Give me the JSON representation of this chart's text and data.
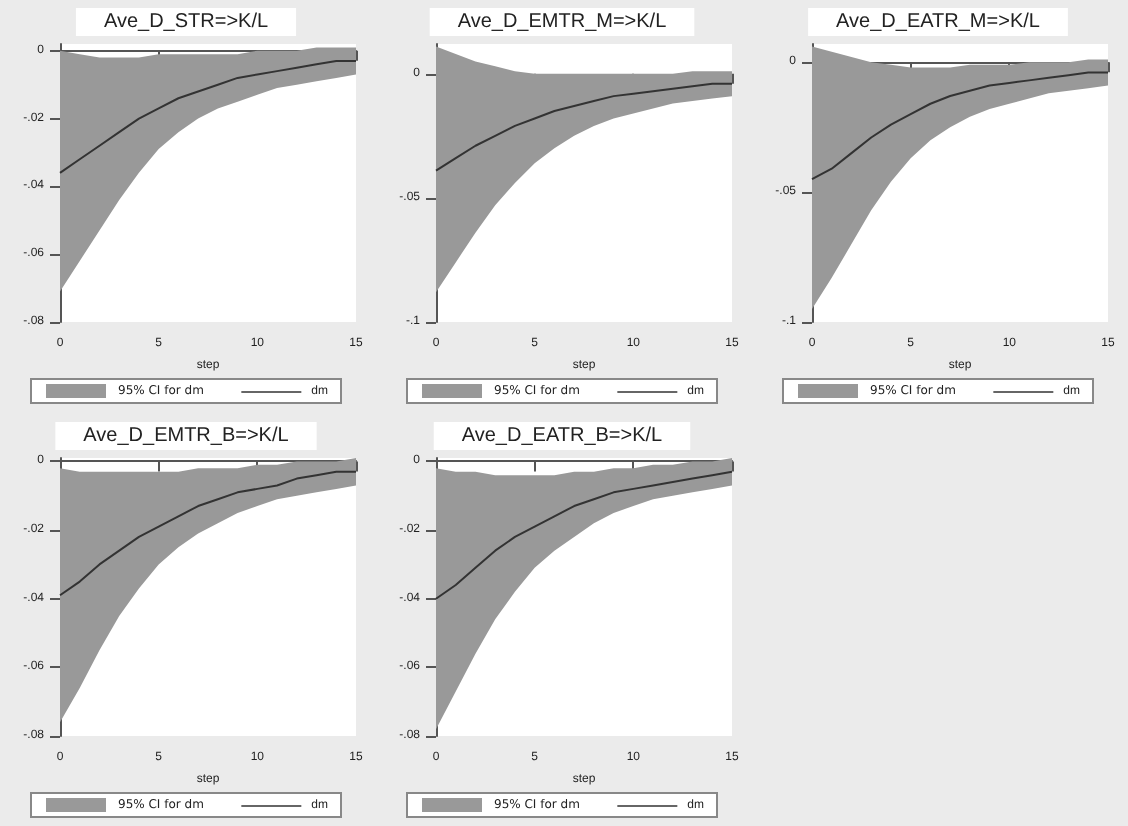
{
  "chart_data": [
    {
      "type": "line",
      "title": "Ave_D_STR=>K/L",
      "xlabel": "step",
      "annotations": [
        "95% CI for dm"
      ],
      "x": [
        0,
        1,
        2,
        3,
        4,
        5,
        6,
        7,
        8,
        9,
        10,
        11,
        12,
        13,
        14,
        15
      ],
      "xlim": [
        0,
        15
      ],
      "xticks": [
        0,
        5,
        10,
        15
      ],
      "ylim": [
        -0.08,
        0.002
      ],
      "yticks": [
        {
          "value": 0,
          "label": "0"
        },
        {
          "value": -0.02,
          "label": "-.02"
        },
        {
          "value": -0.04,
          "label": "-.04"
        },
        {
          "value": -0.06,
          "label": "-.06"
        },
        {
          "value": -0.08,
          "label": "-.08"
        }
      ],
      "legend": "bottom",
      "series": [
        {
          "name": "dm",
          "color": "#333333",
          "values": [
            -0.036,
            -0.032,
            -0.028,
            -0.024,
            -0.02,
            -0.017,
            -0.014,
            -0.012,
            -0.01,
            -0.008,
            -0.007,
            -0.006,
            -0.005,
            -0.004,
            -0.003,
            -0.003
          ],
          "upper": [
            0,
            -0.001,
            -0.002,
            -0.002,
            -0.002,
            -0.001,
            -0.001,
            -0.001,
            -0.001,
            -0.001,
            0,
            0,
            0,
            0.001,
            0.001,
            0.001
          ],
          "lower": [
            -0.071,
            -0.062,
            -0.053,
            -0.044,
            -0.036,
            -0.029,
            -0.024,
            -0.02,
            -0.017,
            -0.015,
            -0.013,
            -0.011,
            -0.01,
            -0.009,
            -0.008,
            -0.007
          ]
        }
      ]
    },
    {
      "type": "line",
      "title": "Ave_D_EMTR_M=>K/L",
      "xlabel": "step",
      "annotations": [
        "95% CI for dm"
      ],
      "x": [
        0,
        1,
        2,
        3,
        4,
        5,
        6,
        7,
        8,
        9,
        10,
        11,
        12,
        13,
        14,
        15
      ],
      "xlim": [
        0,
        15
      ],
      "xticks": [
        0,
        5,
        10,
        15
      ],
      "ylim": [
        -0.1,
        0.012
      ],
      "yticks": [
        {
          "value": 0,
          "label": "0"
        },
        {
          "value": -0.05,
          "label": "-.05"
        },
        {
          "value": -0.1,
          "label": "-.1"
        }
      ],
      "legend": "bottom",
      "series": [
        {
          "name": "dm",
          "color": "#333333",
          "values": [
            -0.039,
            -0.034,
            -0.029,
            -0.025,
            -0.021,
            -0.018,
            -0.015,
            -0.013,
            -0.011,
            -0.009,
            -0.008,
            -0.007,
            -0.006,
            -0.005,
            -0.004,
            -0.004
          ],
          "upper": [
            0.011,
            0.008,
            0.005,
            0.003,
            0.001,
            0,
            0,
            0,
            0,
            0,
            0,
            0,
            0,
            0.001,
            0.001,
            0.001
          ],
          "lower": [
            -0.088,
            -0.076,
            -0.064,
            -0.053,
            -0.044,
            -0.036,
            -0.03,
            -0.025,
            -0.021,
            -0.018,
            -0.016,
            -0.014,
            -0.012,
            -0.011,
            -0.01,
            -0.009
          ]
        }
      ]
    },
    {
      "type": "line",
      "title": "Ave_D_EATR_M=>K/L",
      "xlabel": "step",
      "annotations": [
        "95% CI for dm"
      ],
      "x": [
        0,
        1,
        2,
        3,
        4,
        5,
        6,
        7,
        8,
        9,
        10,
        11,
        12,
        13,
        14,
        15
      ],
      "xlim": [
        0,
        15
      ],
      "xticks": [
        0,
        5,
        10,
        15
      ],
      "ylim": [
        -0.1,
        0.007
      ],
      "yticks": [
        {
          "value": 0,
          "label": "0"
        },
        {
          "value": -0.05,
          "label": "-.05"
        },
        {
          "value": -0.1,
          "label": "-.1"
        }
      ],
      "legend": "bottom",
      "series": [
        {
          "name": "dm",
          "color": "#333333",
          "values": [
            -0.045,
            -0.041,
            -0.035,
            -0.029,
            -0.024,
            -0.02,
            -0.016,
            -0.013,
            -0.011,
            -0.009,
            -0.008,
            -0.007,
            -0.006,
            -0.005,
            -0.004,
            -0.004
          ],
          "upper": [
            0.006,
            0.004,
            0.002,
            0,
            -0.001,
            -0.002,
            -0.002,
            -0.002,
            -0.001,
            -0.001,
            -0.001,
            0,
            0,
            0,
            0.001,
            0.001
          ],
          "lower": [
            -0.095,
            -0.083,
            -0.07,
            -0.057,
            -0.046,
            -0.037,
            -0.03,
            -0.025,
            -0.021,
            -0.018,
            -0.016,
            -0.014,
            -0.012,
            -0.011,
            -0.01,
            -0.009
          ]
        }
      ]
    },
    {
      "type": "line",
      "title": "Ave_D_EMTR_B=>K/L",
      "xlabel": "step",
      "annotations": [
        "95% CI for dm"
      ],
      "x": [
        0,
        1,
        2,
        3,
        4,
        5,
        6,
        7,
        8,
        9,
        10,
        11,
        12,
        13,
        14,
        15
      ],
      "xlim": [
        0,
        15
      ],
      "xticks": [
        0,
        5,
        10,
        15
      ],
      "ylim": [
        -0.08,
        0.001
      ],
      "yticks": [
        {
          "value": 0,
          "label": "0"
        },
        {
          "value": -0.02,
          "label": "-.02"
        },
        {
          "value": -0.04,
          "label": "-.04"
        },
        {
          "value": -0.06,
          "label": "-.06"
        },
        {
          "value": -0.08,
          "label": "-.08"
        }
      ],
      "legend": "bottom",
      "series": [
        {
          "name": "dm",
          "color": "#333333",
          "values": [
            -0.039,
            -0.035,
            -0.03,
            -0.026,
            -0.022,
            -0.019,
            -0.016,
            -0.013,
            -0.011,
            -0.009,
            -0.008,
            -0.007,
            -0.005,
            -0.004,
            -0.003,
            -0.003
          ],
          "upper": [
            -0.002,
            -0.003,
            -0.003,
            -0.003,
            -0.003,
            -0.003,
            -0.003,
            -0.002,
            -0.002,
            -0.002,
            -0.001,
            -0.001,
            0,
            0,
            0,
            0.001
          ],
          "lower": [
            -0.076,
            -0.066,
            -0.055,
            -0.045,
            -0.037,
            -0.03,
            -0.025,
            -0.021,
            -0.018,
            -0.015,
            -0.013,
            -0.011,
            -0.01,
            -0.009,
            -0.008,
            -0.007
          ]
        }
      ]
    },
    {
      "type": "line",
      "title": "Ave_D_EATR_B=>K/L",
      "xlabel": "step",
      "annotations": [
        "95% CI for dm"
      ],
      "x": [
        0,
        1,
        2,
        3,
        4,
        5,
        6,
        7,
        8,
        9,
        10,
        11,
        12,
        13,
        14,
        15
      ],
      "xlim": [
        0,
        15
      ],
      "xticks": [
        0,
        5,
        10,
        15
      ],
      "ylim": [
        -0.08,
        0.001
      ],
      "yticks": [
        {
          "value": 0,
          "label": "0"
        },
        {
          "value": -0.02,
          "label": "-.02"
        },
        {
          "value": -0.04,
          "label": "-.04"
        },
        {
          "value": -0.06,
          "label": "-.06"
        },
        {
          "value": -0.08,
          "label": "-.08"
        }
      ],
      "legend": "bottom",
      "series": [
        {
          "name": "dm",
          "color": "#333333",
          "values": [
            -0.04,
            -0.036,
            -0.031,
            -0.026,
            -0.022,
            -0.019,
            -0.016,
            -0.013,
            -0.011,
            -0.009,
            -0.008,
            -0.007,
            -0.006,
            -0.005,
            -0.004,
            -0.003
          ],
          "upper": [
            -0.002,
            -0.003,
            -0.003,
            -0.004,
            -0.004,
            -0.004,
            -0.004,
            -0.003,
            -0.003,
            -0.002,
            -0.002,
            -0.001,
            -0.001,
            0,
            0,
            0.001
          ],
          "lower": [
            -0.078,
            -0.067,
            -0.056,
            -0.046,
            -0.038,
            -0.031,
            -0.026,
            -0.022,
            -0.018,
            -0.015,
            -0.013,
            -0.011,
            -0.01,
            -0.009,
            -0.008,
            -0.007
          ]
        }
      ]
    }
  ]
}
